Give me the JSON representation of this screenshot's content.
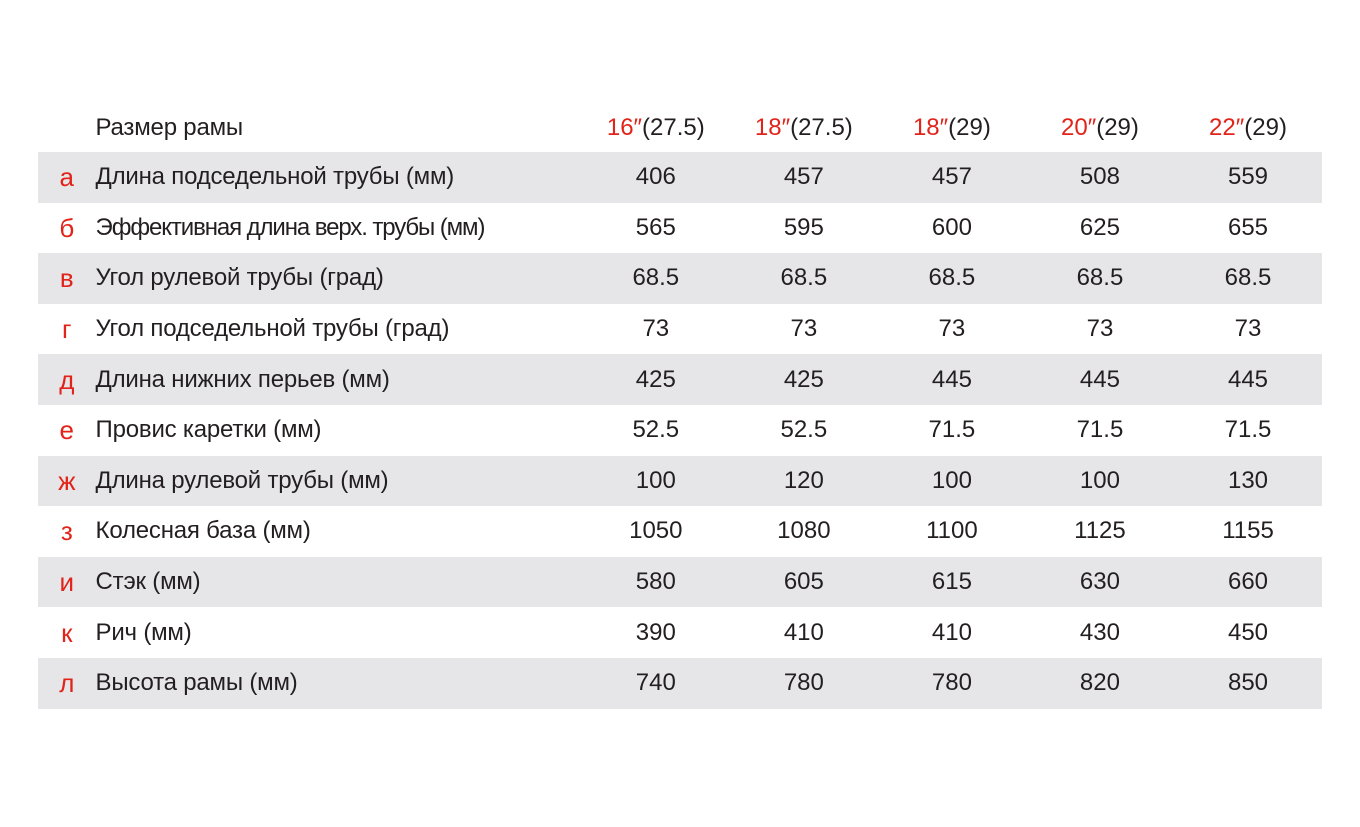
{
  "table": {
    "header_label": "Размер рамы",
    "columns": [
      {
        "size": "16″",
        "wheel": "(27.5)"
      },
      {
        "size": "18″",
        "wheel": "(27.5)"
      },
      {
        "size": "18″",
        "wheel": "(29)"
      },
      {
        "size": "20″",
        "wheel": "(29)"
      },
      {
        "size": "22″",
        "wheel": "(29)"
      }
    ],
    "rows": [
      {
        "letter": "а",
        "label": "Длина подседельной трубы (мм)",
        "values": [
          "406",
          "457",
          "457",
          "508",
          "559"
        ]
      },
      {
        "letter": "б",
        "label": "Эффективная длина верх. трубы (мм)",
        "values": [
          "565",
          "595",
          "600",
          "625",
          "655"
        ]
      },
      {
        "letter": "в",
        "label": "Угол рулевой трубы (град)",
        "values": [
          "68.5",
          "68.5",
          "68.5",
          "68.5",
          "68.5"
        ]
      },
      {
        "letter": "г",
        "label": "Угол подседельной трубы (град)",
        "values": [
          "73",
          "73",
          "73",
          "73",
          "73"
        ]
      },
      {
        "letter": "д",
        "label": "Длина нижних перьев (мм)",
        "values": [
          "425",
          "425",
          "445",
          "445",
          "445"
        ]
      },
      {
        "letter": "е",
        "label": "Провис каретки (мм)",
        "values": [
          "52.5",
          "52.5",
          "71.5",
          "71.5",
          "71.5"
        ]
      },
      {
        "letter": "ж",
        "label": "Длина рулевой трубы (мм)",
        "values": [
          "100",
          "120",
          "100",
          "100",
          "130"
        ]
      },
      {
        "letter": "з",
        "label": "Колесная база (мм)",
        "values": [
          "1050",
          "1080",
          "1100",
          "1125",
          "1155"
        ]
      },
      {
        "letter": "и",
        "label": "Стэк (мм)",
        "values": [
          "580",
          "605",
          "615",
          "630",
          "660"
        ]
      },
      {
        "letter": "к",
        "label": "Рич (мм)",
        "values": [
          "390",
          "410",
          "410",
          "430",
          "450"
        ]
      },
      {
        "letter": "л",
        "label": "Высота рамы (мм)",
        "values": [
          "740",
          "780",
          "780",
          "820",
          "850"
        ]
      }
    ]
  },
  "colors": {
    "accent": "#e2231a",
    "stripe": "#e6e6e8",
    "text": "#231f20"
  }
}
